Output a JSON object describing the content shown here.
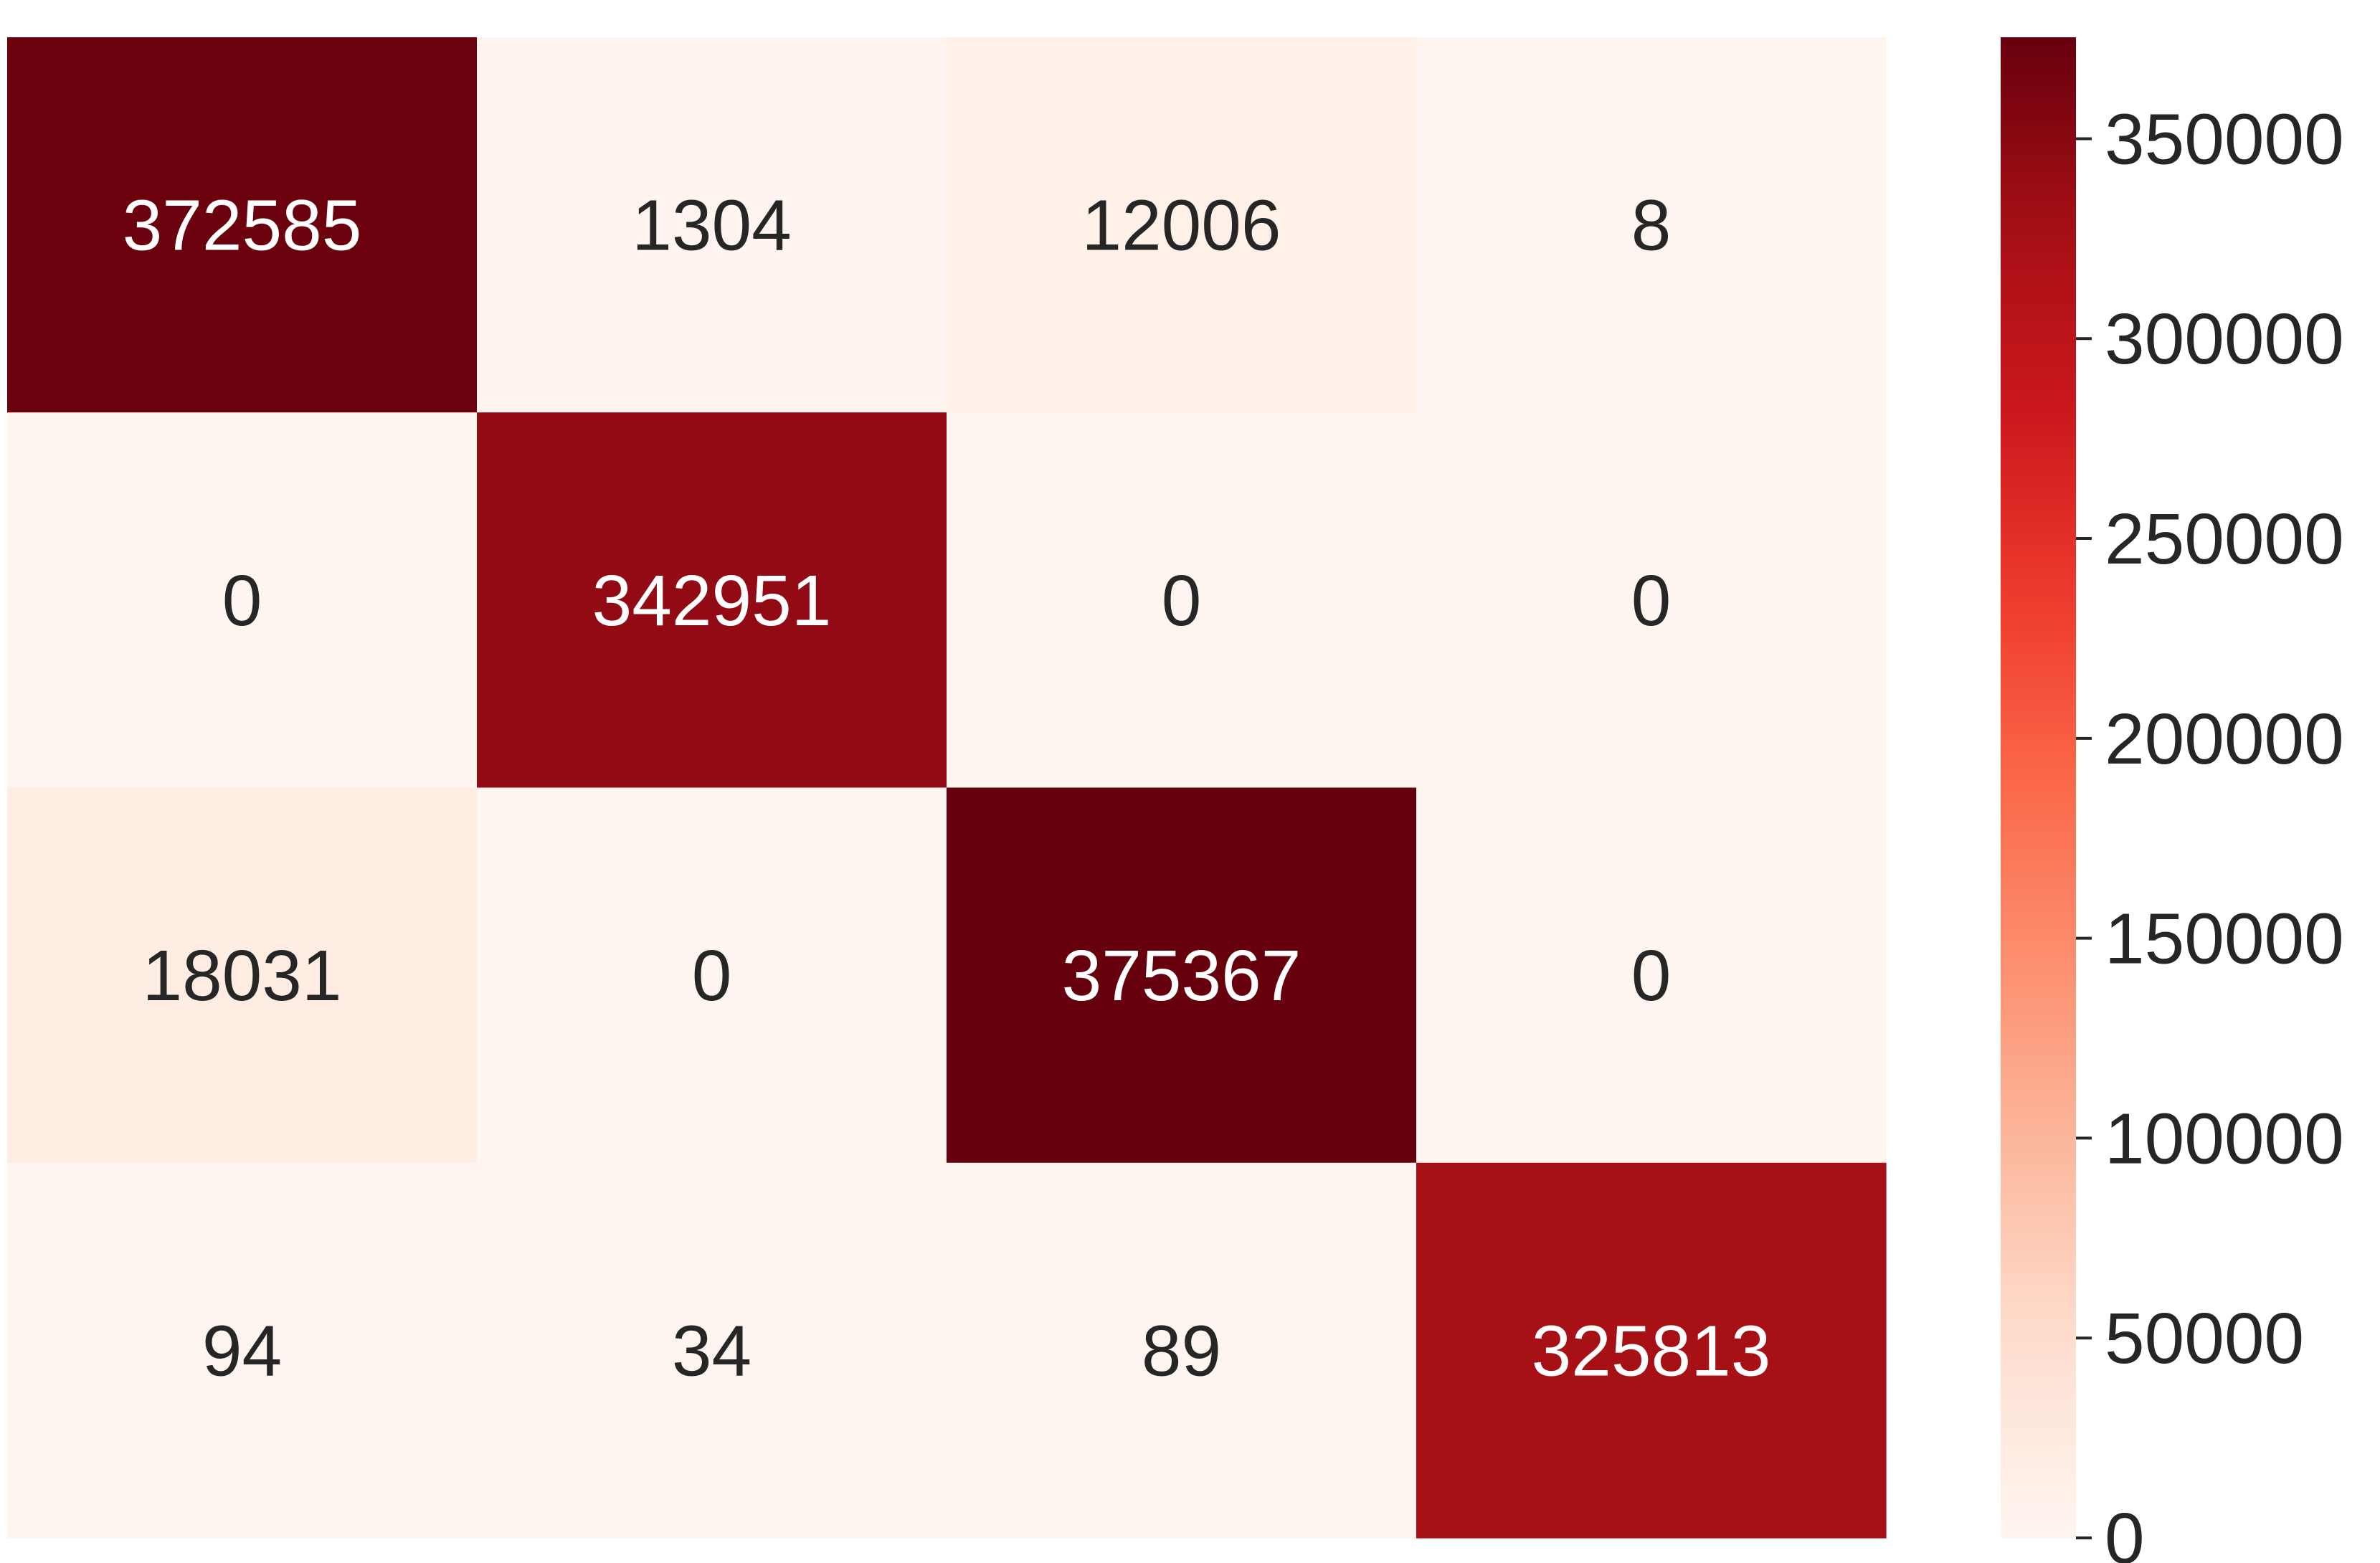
{
  "chart_data": {
    "type": "heatmap",
    "title": "",
    "xlabel": "",
    "ylabel": "",
    "rows": 4,
    "cols": 4,
    "matrix": [
      [
        372585,
        1304,
        12006,
        8
      ],
      [
        0,
        342951,
        0,
        0
      ],
      [
        18031,
        0,
        375367,
        0
      ],
      [
        94,
        34,
        89,
        325813
      ]
    ],
    "colormap": "Reds",
    "colorbar": {
      "min": 0,
      "max": 375367,
      "ticks": [
        0,
        50000,
        100000,
        150000,
        200000,
        250000,
        300000,
        350000
      ],
      "tick_labels": [
        "0",
        "50000",
        "100000",
        "150000",
        "200000",
        "250000",
        "300000",
        "350000"
      ],
      "placement": "right"
    },
    "grid": false,
    "colors": {
      "low": "#fff5f0",
      "high": "#67000d",
      "text_dark": "#262626",
      "text_light": "#ffffff"
    }
  }
}
